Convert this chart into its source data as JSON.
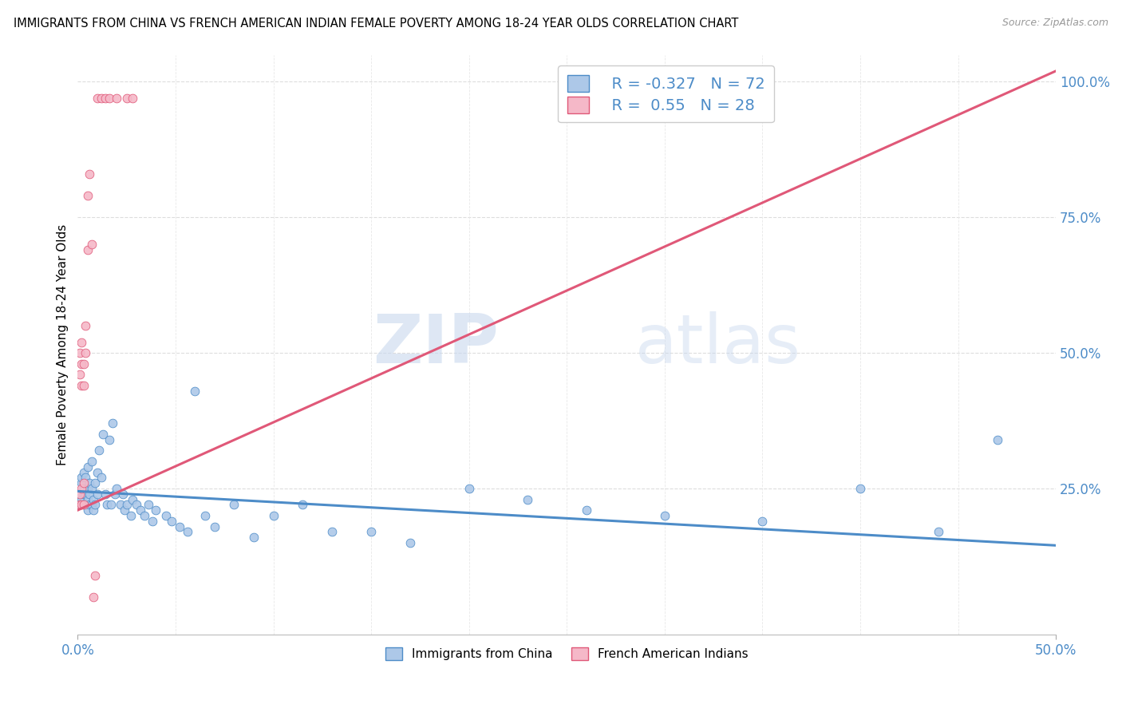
{
  "title": "IMMIGRANTS FROM CHINA VS FRENCH AMERICAN INDIAN FEMALE POVERTY AMONG 18-24 YEAR OLDS CORRELATION CHART",
  "source": "Source: ZipAtlas.com",
  "ylabel": "Female Poverty Among 18-24 Year Olds",
  "xmin": 0.0,
  "xmax": 0.5,
  "ymin": -0.02,
  "ymax": 1.05,
  "blue_color": "#adc8e8",
  "pink_color": "#f5b8c8",
  "blue_line_color": "#4d8cc8",
  "pink_line_color": "#e05878",
  "R_blue": -0.327,
  "N_blue": 72,
  "R_pink": 0.55,
  "N_pink": 28,
  "legend_label_blue": "Immigrants from China",
  "legend_label_pink": "French American Indians",
  "watermark_zip": "ZIP",
  "watermark_atlas": "atlas",
  "blue_line_x0": 0.0,
  "blue_line_y0": 0.245,
  "blue_line_x1": 0.5,
  "blue_line_y1": 0.145,
  "pink_line_x0": 0.0,
  "pink_line_y0": 0.21,
  "pink_line_x1": 0.5,
  "pink_line_y1": 1.02,
  "blue_x": [
    0.001,
    0.001,
    0.002,
    0.002,
    0.002,
    0.003,
    0.003,
    0.003,
    0.003,
    0.004,
    0.004,
    0.004,
    0.005,
    0.005,
    0.005,
    0.005,
    0.006,
    0.006,
    0.006,
    0.007,
    0.007,
    0.007,
    0.008,
    0.008,
    0.009,
    0.009,
    0.01,
    0.01,
    0.011,
    0.012,
    0.013,
    0.014,
    0.015,
    0.016,
    0.017,
    0.018,
    0.019,
    0.02,
    0.022,
    0.023,
    0.024,
    0.025,
    0.027,
    0.028,
    0.03,
    0.032,
    0.034,
    0.036,
    0.038,
    0.04,
    0.045,
    0.048,
    0.052,
    0.056,
    0.06,
    0.065,
    0.07,
    0.08,
    0.09,
    0.1,
    0.115,
    0.13,
    0.15,
    0.17,
    0.2,
    0.23,
    0.26,
    0.3,
    0.35,
    0.4,
    0.44,
    0.47
  ],
  "blue_y": [
    0.22,
    0.24,
    0.23,
    0.26,
    0.27,
    0.22,
    0.24,
    0.25,
    0.28,
    0.22,
    0.24,
    0.27,
    0.21,
    0.23,
    0.25,
    0.29,
    0.22,
    0.24,
    0.26,
    0.22,
    0.25,
    0.3,
    0.21,
    0.23,
    0.22,
    0.26,
    0.24,
    0.28,
    0.32,
    0.27,
    0.35,
    0.24,
    0.22,
    0.34,
    0.22,
    0.37,
    0.24,
    0.25,
    0.22,
    0.24,
    0.21,
    0.22,
    0.2,
    0.23,
    0.22,
    0.21,
    0.2,
    0.22,
    0.19,
    0.21,
    0.2,
    0.19,
    0.18,
    0.17,
    0.43,
    0.2,
    0.18,
    0.22,
    0.16,
    0.2,
    0.22,
    0.17,
    0.17,
    0.15,
    0.25,
    0.23,
    0.21,
    0.2,
    0.19,
    0.25,
    0.17,
    0.34
  ],
  "pink_x": [
    0.001,
    0.001,
    0.001,
    0.001,
    0.002,
    0.002,
    0.002,
    0.002,
    0.002,
    0.003,
    0.003,
    0.003,
    0.003,
    0.004,
    0.004,
    0.005,
    0.005,
    0.006,
    0.007,
    0.008,
    0.009,
    0.01,
    0.012,
    0.014,
    0.016,
    0.02,
    0.025,
    0.028
  ],
  "pink_y": [
    0.22,
    0.24,
    0.46,
    0.5,
    0.22,
    0.44,
    0.48,
    0.25,
    0.52,
    0.44,
    0.48,
    0.22,
    0.26,
    0.5,
    0.55,
    0.69,
    0.79,
    0.83,
    0.7,
    0.05,
    0.09,
    0.97,
    0.97,
    0.97,
    0.97,
    0.97,
    0.97,
    0.97
  ]
}
